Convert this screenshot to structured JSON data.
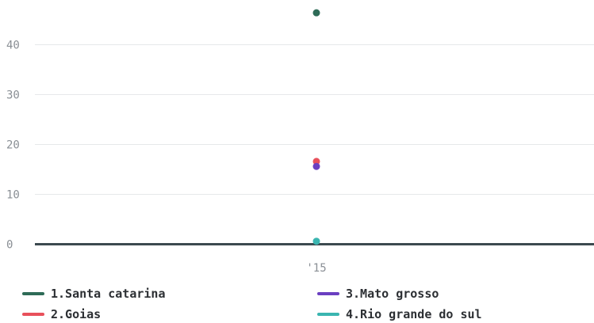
{
  "chart_data": {
    "type": "scatter",
    "categories": [
      "'15"
    ],
    "ylim": [
      0,
      46.5
    ],
    "yticks": [
      0,
      10,
      20,
      30,
      40
    ],
    "grid": true,
    "legend_position": "bottom",
    "series": [
      {
        "name": "1.Santa catarina",
        "values": [
          46.4
        ],
        "color": "#2e6b57"
      },
      {
        "name": "2.Goias",
        "values": [
          16.6
        ],
        "color": "#e8505b"
      },
      {
        "name": "3.Mato grosso",
        "values": [
          15.6
        ],
        "color": "#6a3fc1"
      },
      {
        "name": "4.Rio grande do sul",
        "values": [
          0.6
        ],
        "color": "#3ab5b0"
      }
    ]
  }
}
